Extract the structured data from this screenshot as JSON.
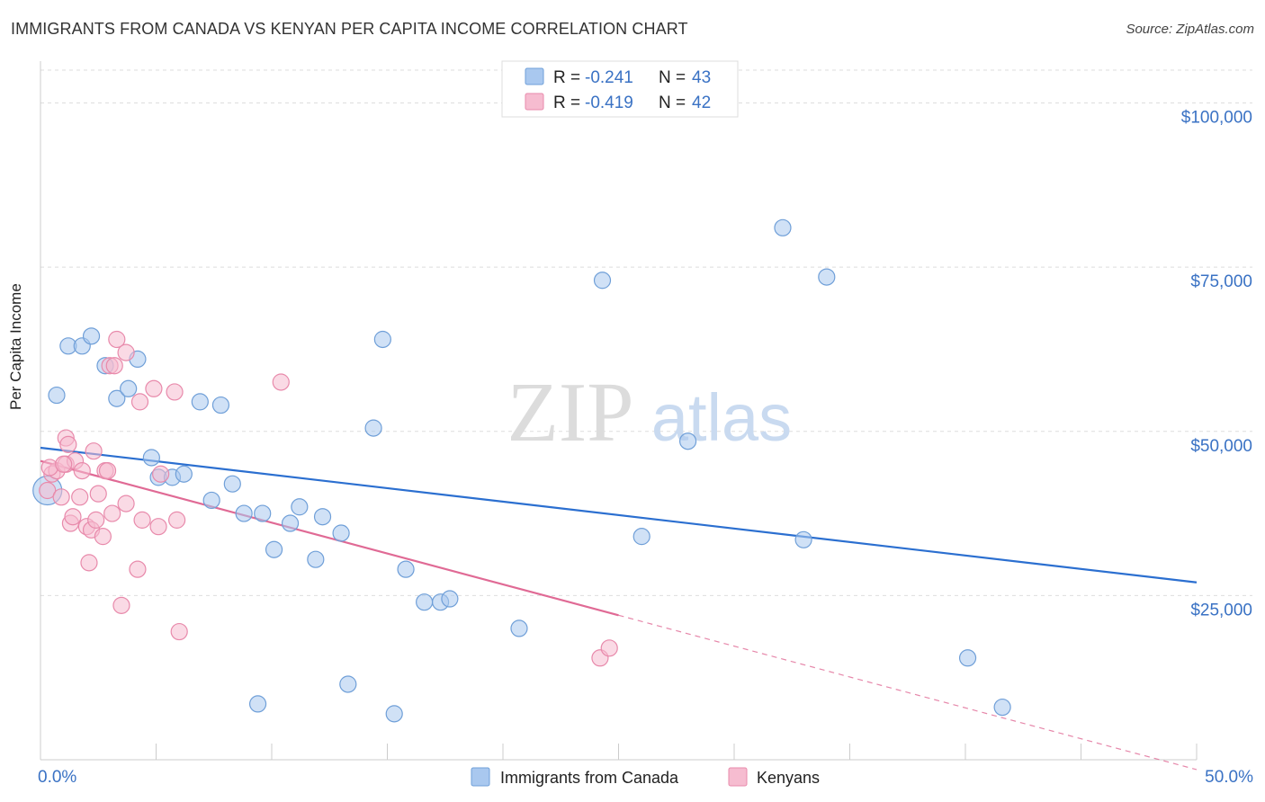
{
  "header": {
    "title": "IMMIGRANTS FROM CANADA VS KENYAN PER CAPITA INCOME CORRELATION CHART",
    "source": "Source: ZipAtlas.com"
  },
  "watermark": {
    "zip": "ZIP",
    "atlas": "atlas"
  },
  "colors": {
    "blue": "#a9c8ef",
    "blue_stroke": "#6f9fd8",
    "blue_line": "#2b6fd0",
    "pink": "#f6bcd0",
    "pink_stroke": "#e88aab",
    "pink_line": "#e06a95",
    "value_text": "#3a72c4",
    "grid": "#dddddd"
  },
  "legend_top": [
    {
      "r_label": "R =",
      "r_value": "-0.241",
      "n_label": "N =",
      "n_value": "43"
    },
    {
      "r_label": "R =",
      "r_value": "-0.419",
      "n_label": "N =",
      "n_value": "42"
    }
  ],
  "chart_data": {
    "type": "scatter",
    "ylabel": "Per Capita Income",
    "xlim": [
      0,
      50
    ],
    "ylim": [
      0,
      105000
    ],
    "x_tick_labels": [
      "0.0%",
      "50.0%"
    ],
    "y_ticks": [
      {
        "value": 25000,
        "label": "$25,000"
      },
      {
        "value": 50000,
        "label": "$50,000"
      },
      {
        "value": 75000,
        "label": "$75,000"
      },
      {
        "value": 100000,
        "label": "$100,000"
      }
    ],
    "grid": true,
    "legend_position": "bottom",
    "series": [
      {
        "name": "Immigrants from Canada",
        "color": "blue",
        "trend": {
          "x0": 0,
          "y0": 47500,
          "x1": 50,
          "y1": 27000
        },
        "points": [
          [
            0.3,
            41000
          ],
          [
            0.7,
            55500
          ],
          [
            1.2,
            63000
          ],
          [
            1.8,
            63000
          ],
          [
            2.2,
            64500
          ],
          [
            2.8,
            60000
          ],
          [
            3.3,
            55000
          ],
          [
            3.8,
            56500
          ],
          [
            4.2,
            61000
          ],
          [
            4.8,
            46000
          ],
          [
            5.1,
            43000
          ],
          [
            5.7,
            43000
          ],
          [
            6.2,
            43500
          ],
          [
            6.9,
            54500
          ],
          [
            7.4,
            39500
          ],
          [
            7.8,
            54000
          ],
          [
            8.3,
            42000
          ],
          [
            8.8,
            37500
          ],
          [
            9.4,
            8500
          ],
          [
            9.6,
            37500
          ],
          [
            10.1,
            32000
          ],
          [
            10.8,
            36000
          ],
          [
            11.2,
            38500
          ],
          [
            11.9,
            30500
          ],
          [
            12.2,
            37000
          ],
          [
            13.0,
            34500
          ],
          [
            13.3,
            11500
          ],
          [
            14.4,
            50500
          ],
          [
            14.8,
            64000
          ],
          [
            15.3,
            7000
          ],
          [
            15.8,
            29000
          ],
          [
            16.6,
            24000
          ],
          [
            17.3,
            24000
          ],
          [
            17.7,
            24500
          ],
          [
            20.7,
            20000
          ],
          [
            24.3,
            73000
          ],
          [
            26.0,
            34000
          ],
          [
            28.0,
            48500
          ],
          [
            32.1,
            81000
          ],
          [
            33.0,
            33500
          ],
          [
            34.0,
            73500
          ],
          [
            40.1,
            15500
          ],
          [
            41.6,
            8000
          ]
        ]
      },
      {
        "name": "Kenyans",
        "color": "pink",
        "trend": {
          "x0": 0,
          "y0": 45500,
          "x1": 25,
          "y1": 22000
        },
        "trend_extension": {
          "x0": 25,
          "y0": 22000,
          "x1": 50,
          "y1": -1500
        },
        "points": [
          [
            0.3,
            41000
          ],
          [
            0.5,
            43500
          ],
          [
            0.7,
            44000
          ],
          [
            0.9,
            40000
          ],
          [
            1.1,
            45000
          ],
          [
            1.1,
            49000
          ],
          [
            1.2,
            48000
          ],
          [
            1.3,
            36000
          ],
          [
            1.4,
            37000
          ],
          [
            1.5,
            45500
          ],
          [
            1.7,
            40000
          ],
          [
            1.8,
            44000
          ],
          [
            2.0,
            35500
          ],
          [
            2.1,
            30000
          ],
          [
            2.2,
            35000
          ],
          [
            2.3,
            47000
          ],
          [
            2.4,
            36500
          ],
          [
            2.5,
            40500
          ],
          [
            2.7,
            34000
          ],
          [
            2.8,
            44000
          ],
          [
            2.9,
            44000
          ],
          [
            3.0,
            60000
          ],
          [
            3.1,
            37500
          ],
          [
            3.2,
            60000
          ],
          [
            3.3,
            64000
          ],
          [
            3.5,
            23500
          ],
          [
            3.7,
            62000
          ],
          [
            3.7,
            39000
          ],
          [
            4.2,
            29000
          ],
          [
            4.3,
            54500
          ],
          [
            4.4,
            36500
          ],
          [
            4.9,
            56500
          ],
          [
            5.1,
            35500
          ],
          [
            5.2,
            43500
          ],
          [
            5.8,
            56000
          ],
          [
            5.9,
            36500
          ],
          [
            6.0,
            19500
          ],
          [
            10.4,
            57500
          ],
          [
            24.2,
            15500
          ],
          [
            24.6,
            17000
          ],
          [
            0.4,
            44500
          ],
          [
            1.0,
            45000
          ]
        ]
      }
    ]
  }
}
